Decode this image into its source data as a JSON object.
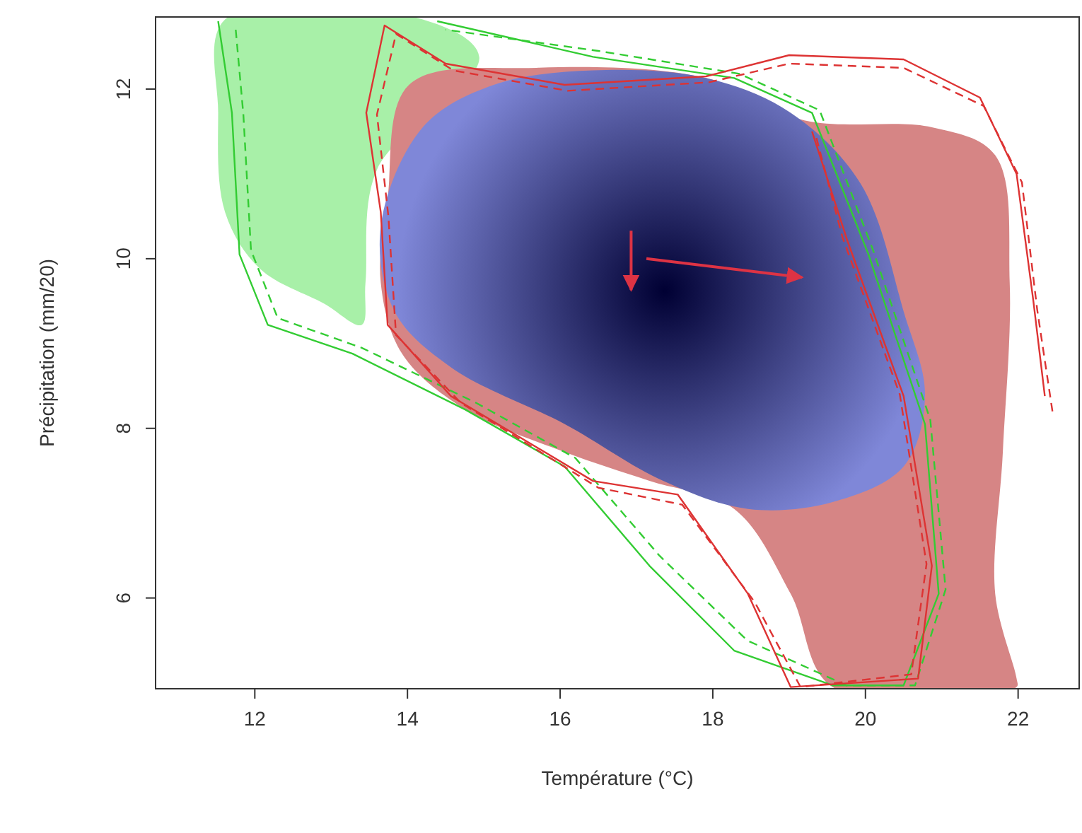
{
  "chart_data": {
    "type": "area",
    "xlabel": "Température (°C)",
    "ylabel": "Précipitation (mm/20)",
    "xlim": [
      10.7,
      22.8
    ],
    "ylim": [
      4.93,
      12.85
    ],
    "xticks": [
      12,
      14,
      16,
      18,
      20,
      22
    ],
    "yticks": [
      6,
      8,
      10,
      12
    ],
    "grid": false,
    "series": [
      {
        "color": "#a8f0a8",
        "x": [
          11.61,
          14.2,
          14.94,
          13.6,
          13.45,
          13.4,
          12.91,
          12.07,
          11.61,
          11.52
        ],
        "values": [
          12.82,
          12.82,
          12.38,
          11.05,
          9.72,
          9.22,
          9.47,
          9.88,
          10.55,
          11.72
        ]
      },
      {
        "color": "#d68585",
        "x": [
          14.02,
          15.69,
          17.91,
          19.2,
          20.87,
          21.7,
          21.89,
          21.8,
          21.7,
          21.98,
          21.98,
          19.57,
          19.02,
          18.28,
          17.17,
          16.06,
          14.76,
          13.93,
          13.65,
          13.74
        ],
        "values": [
          12.05,
          12.25,
          12.13,
          11.63,
          11.55,
          11.22,
          9.72,
          7.72,
          6.05,
          5.05,
          4.95,
          4.95,
          6.05,
          7.05,
          7.38,
          7.72,
          8.22,
          8.88,
          9.72,
          10.72
        ]
      },
      {
        "color": "#7f87d8",
        "x": [
          14.2,
          15.13,
          16.43,
          17.91,
          19.02,
          19.94,
          20.5,
          20.78,
          20.5,
          19.57,
          18.46,
          17.35,
          16.06,
          14.57,
          13.83,
          13.65
        ],
        "values": [
          11.55,
          12.05,
          12.22,
          12.13,
          11.72,
          10.88,
          9.38,
          8.38,
          7.55,
          7.13,
          7.05,
          7.38,
          8.05,
          8.72,
          9.38,
          10.38
        ]
      },
      {
        "type": "line",
        "color": "#33cc33",
        "line_style": "solid",
        "x": [
          11.52,
          11.7,
          11.8,
          12.17,
          13.28,
          14.76,
          16.06,
          17.17,
          18.28,
          19.57,
          20.5,
          20.96,
          20.78,
          20.04,
          19.3,
          18.28,
          16.43,
          14.39
        ],
        "values": [
          12.8,
          11.72,
          10.05,
          9.22,
          8.88,
          8.22,
          7.55,
          6.38,
          5.38,
          4.97,
          4.97,
          6.05,
          8.05,
          10.05,
          11.72,
          12.13,
          12.38,
          12.8
        ]
      },
      {
        "type": "line",
        "color": "#33cc33",
        "line_style": "dashed",
        "x": [
          11.75,
          11.85,
          11.95,
          12.3,
          13.4,
          14.9,
          16.2,
          17.3,
          18.45,
          19.75,
          20.65,
          21.05,
          20.85,
          20.1,
          19.4,
          18.35,
          16.5,
          14.5
        ],
        "values": [
          12.7,
          11.7,
          10.1,
          9.3,
          8.95,
          8.3,
          7.65,
          6.5,
          5.5,
          4.97,
          4.97,
          6.1,
          8.1,
          10.1,
          11.75,
          12.18,
          12.45,
          12.7
        ]
      },
      {
        "type": "line",
        "color": "#dd3333",
        "line_style": "solid",
        "x": [
          22.35,
          22.2,
          21.98,
          21.5,
          20.5,
          19,
          17.91,
          16.06,
          14.5,
          13.7,
          13.46,
          13.65,
          13.74,
          14.57,
          16.43,
          17.54,
          18.46,
          19.02,
          20.69,
          20.87,
          20.5,
          19.76,
          19.3
        ],
        "values": [
          8.38,
          9.5,
          11.0,
          11.9,
          12.35,
          12.4,
          12.15,
          12.05,
          12.3,
          12.75,
          11.72,
          10.55,
          9.22,
          8.38,
          7.38,
          7.22,
          6.05,
          4.95,
          5.05,
          6.38,
          8.38,
          10.22,
          11.5
        ]
      },
      {
        "type": "line",
        "color": "#dd3333",
        "line_style": "dashed",
        "x": [
          22.45,
          22.25,
          22.05,
          21.55,
          20.5,
          19,
          17.95,
          16.1,
          14.6,
          13.85,
          13.6,
          13.75,
          13.85,
          14.7,
          16.5,
          17.6,
          18.55,
          19.15,
          20.6,
          20.8,
          20.45,
          19.7,
          19.35
        ],
        "values": [
          8.2,
          9.4,
          10.9,
          11.8,
          12.25,
          12.3,
          12.08,
          11.98,
          12.22,
          12.65,
          11.7,
          10.5,
          9.1,
          8.3,
          7.3,
          7.1,
          5.95,
          4.95,
          5.1,
          6.4,
          8.4,
          10.25,
          11.45
        ]
      },
      {
        "type": "line",
        "color": "#dd3344",
        "line_style": "solid",
        "x": [
          16.93,
          16.93
        ],
        "values": [
          10.33,
          9.63
        ]
      },
      {
        "type": "line",
        "color": "#dd3344",
        "line_style": "solid",
        "x": [
          17.13,
          19.17
        ],
        "values": [
          10.0,
          9.78
        ]
      }
    ]
  }
}
